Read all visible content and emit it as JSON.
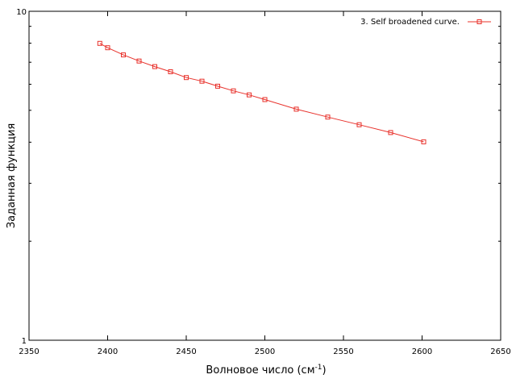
{
  "chart_data": {
    "type": "line",
    "xlabel": "Волновое число (см",
    "xlabel_sup": "-1",
    "xlabel_close": ")",
    "ylabel": "Заданная функция",
    "xlim": [
      2350,
      2650
    ],
    "ylim": [
      1,
      10
    ],
    "y_scale": "log",
    "grid": false,
    "legend_position": "top-right",
    "x_ticks": [
      2350,
      2400,
      2450,
      2500,
      2550,
      2600,
      2650
    ],
    "y_ticks": [
      1,
      10
    ],
    "series": [
      {
        "name": "3. Self broadened curve.",
        "color": "#e8302a",
        "marker": "square",
        "x": [
          2395,
          2400,
          2410,
          2420,
          2430,
          2440,
          2450,
          2460,
          2470,
          2480,
          2490,
          2500,
          2520,
          2540,
          2560,
          2580,
          2601
        ],
        "y": [
          7.99,
          7.75,
          7.37,
          7.06,
          6.79,
          6.55,
          6.29,
          6.13,
          5.92,
          5.73,
          5.57,
          5.39,
          5.04,
          4.77,
          4.52,
          4.28,
          4.01
        ]
      }
    ]
  }
}
